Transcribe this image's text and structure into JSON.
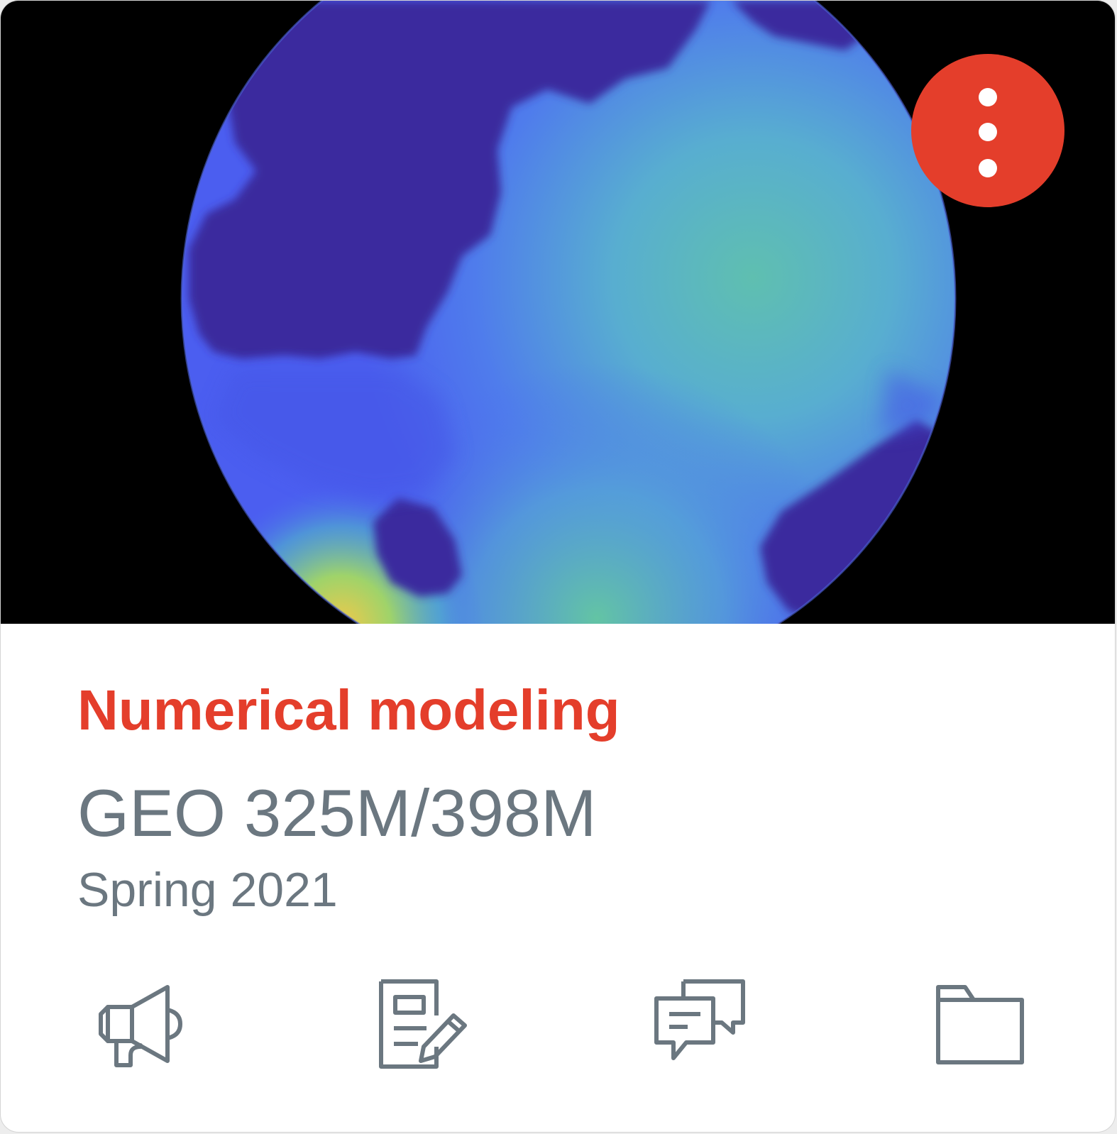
{
  "card": {
    "title": "Numerical modeling",
    "code": "GEO 325M/398M",
    "term": "Spring 2021",
    "colors": {
      "accent": "#e43e2b",
      "text_muted": "#6b7780",
      "image_background": "#000000",
      "image_deep_blue": "#3a2c9e",
      "image_blue": "#4a63ee",
      "image_teal": "#5db7b8"
    },
    "menu": {
      "icon": "more-vertical-icon",
      "color": "#e43e2b"
    },
    "hero_image": {
      "icon": "globe-simulation-image"
    },
    "actions": [
      {
        "icon": "announcements-icon"
      },
      {
        "icon": "assignments-icon"
      },
      {
        "icon": "discussions-icon"
      },
      {
        "icon": "files-icon"
      }
    ]
  }
}
